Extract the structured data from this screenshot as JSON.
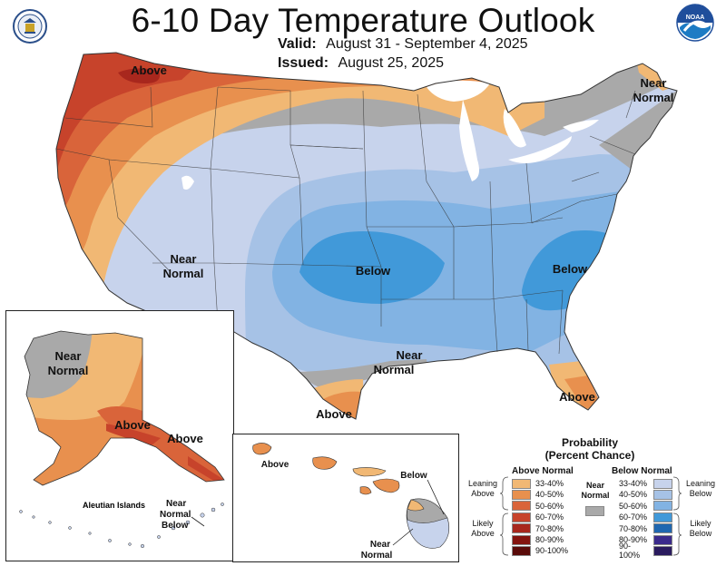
{
  "header": {
    "title": "6-10 Day Temperature Outlook",
    "valid_label": "Valid:",
    "valid_value": "August 31 - September 4, 2025",
    "issued_label": "Issued:",
    "issued_value": "August 25, 2025"
  },
  "logos": {
    "left": "department-seal",
    "right_text": "NOAA"
  },
  "colors": {
    "above": [
      "#f1b874",
      "#e8904e",
      "#d9643a",
      "#c7432b",
      "#a8271d",
      "#84140f",
      "#5a0b09"
    ],
    "below": [
      "#c7d3ec",
      "#a6c2e6",
      "#82b3e3",
      "#4199d9",
      "#1f67b0",
      "#3b2a8c",
      "#2a1b5e"
    ],
    "near_normal": "#a9a9a9",
    "water": "#ffffff",
    "border": "#333333"
  },
  "map_labels": {
    "conus": [
      {
        "text": "Above"
      },
      {
        "text": "Near\nNormal"
      },
      {
        "text": "Near\nNormal"
      },
      {
        "text": "Below"
      },
      {
        "text": "Below"
      },
      {
        "text": "Near\nNormal"
      },
      {
        "text": "Above"
      },
      {
        "text": "Above"
      }
    ],
    "alaska": [
      {
        "text": "Near\nNormal"
      },
      {
        "text": "Above"
      },
      {
        "text": "Above"
      }
    ],
    "aleutians": {
      "title": "Aleutian Islands",
      "label": "Near\nNormal\nBelow"
    },
    "hawaii": [
      {
        "text": "Above"
      },
      {
        "text": "Below"
      },
      {
        "text": "Near\nNormal"
      }
    ]
  },
  "legend": {
    "title_line1": "Probability",
    "title_line2": "(Percent Chance)",
    "above_header": "Above Normal",
    "below_header": "Below Normal",
    "near_normal_label": "Near\nNormal",
    "ranges": [
      "33-40%",
      "40-50%",
      "50-60%",
      "60-70%",
      "70-80%",
      "80-90%",
      "90-100%"
    ],
    "leaning_above": "Leaning\nAbove",
    "likely_above": "Likely\nAbove",
    "leaning_below": "Leaning\nBelow",
    "likely_below": "Likely\nBelow"
  }
}
